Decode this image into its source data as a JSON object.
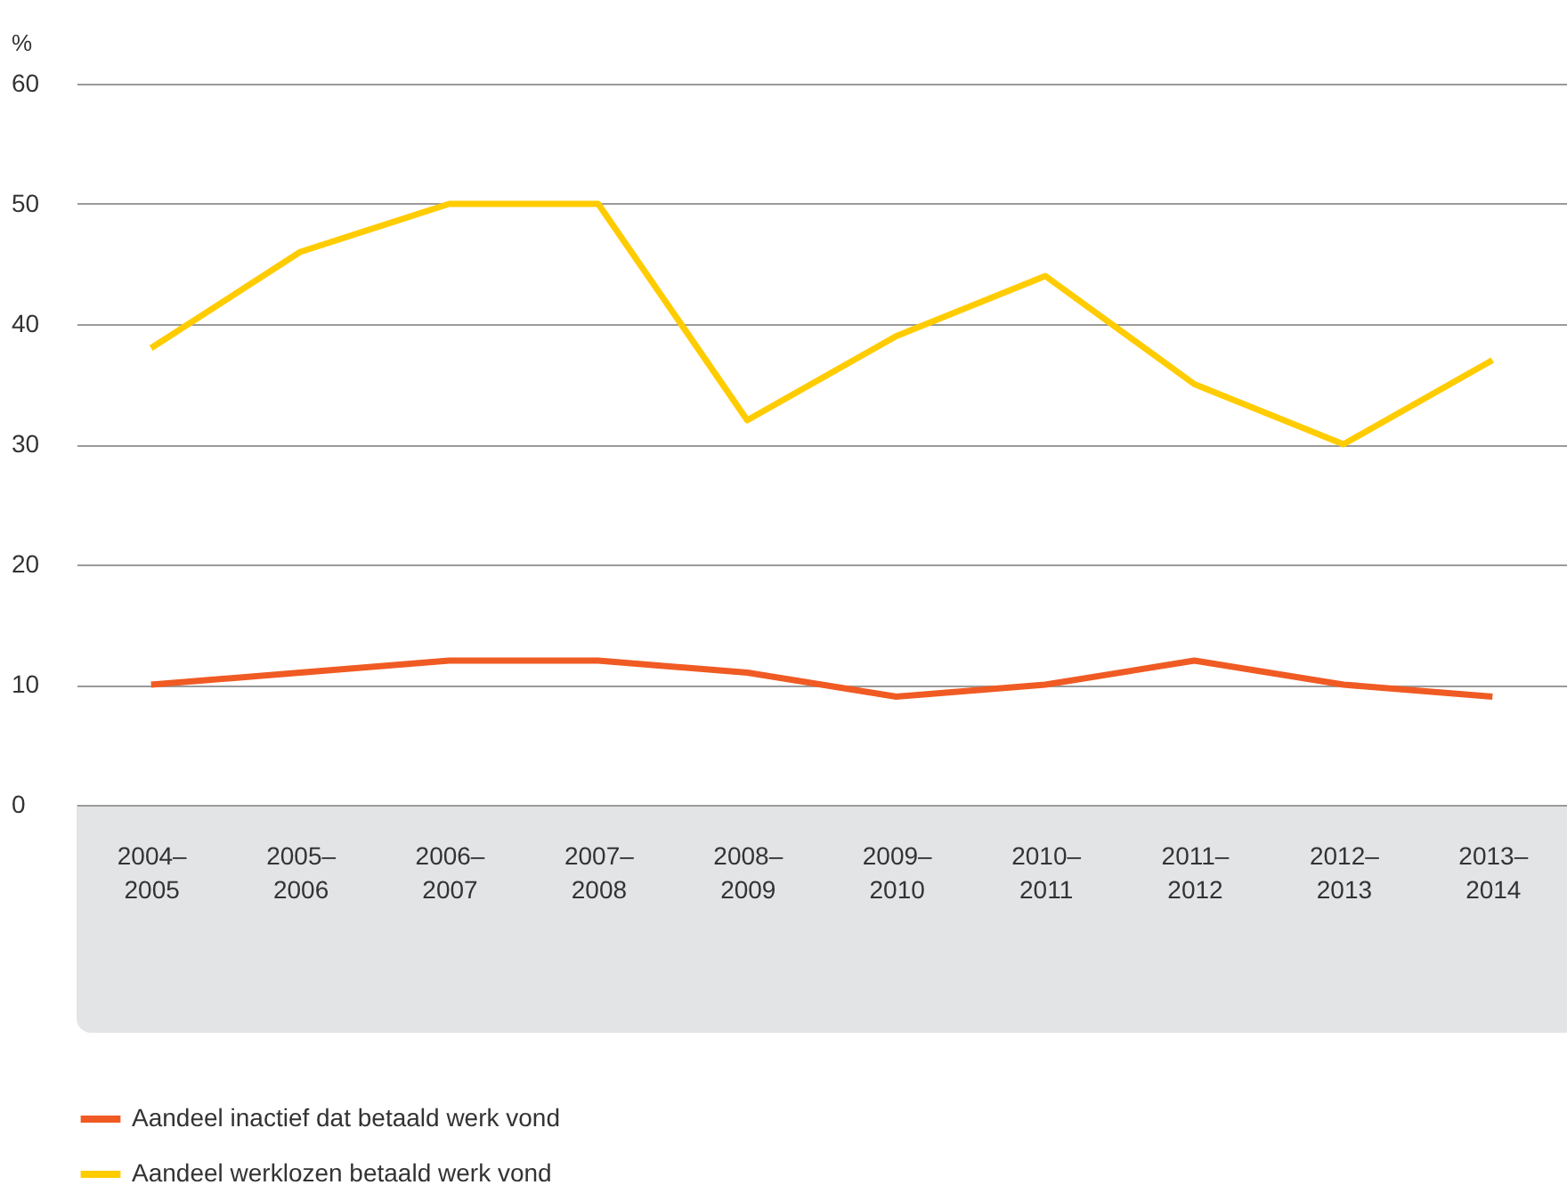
{
  "chart_data": {
    "type": "line",
    "ylabel": "%",
    "categories": [
      "2004–2005",
      "2005–2006",
      "2006–2007",
      "2007–2008",
      "2008–2009",
      "2009–2010",
      "2010–2011",
      "2011–2012",
      "2012–2013",
      "2013–2014"
    ],
    "series": [
      {
        "name": "Aandeel inactief dat betaald werk vond",
        "color": "#f05a23",
        "values": [
          10,
          11,
          12,
          12,
          11,
          9,
          10,
          12,
          10,
          9
        ]
      },
      {
        "name": "Aandeel werklozen betaald werk vond",
        "color": "#ffcc00",
        "values": [
          38,
          46,
          50,
          50,
          32,
          39,
          44,
          35,
          30,
          37
        ]
      }
    ],
    "ylim": [
      0,
      60
    ],
    "yticks": [
      0,
      10,
      20,
      30,
      40,
      50,
      60
    ],
    "grid": "y",
    "legend": "bottom",
    "line_style": "solid"
  }
}
